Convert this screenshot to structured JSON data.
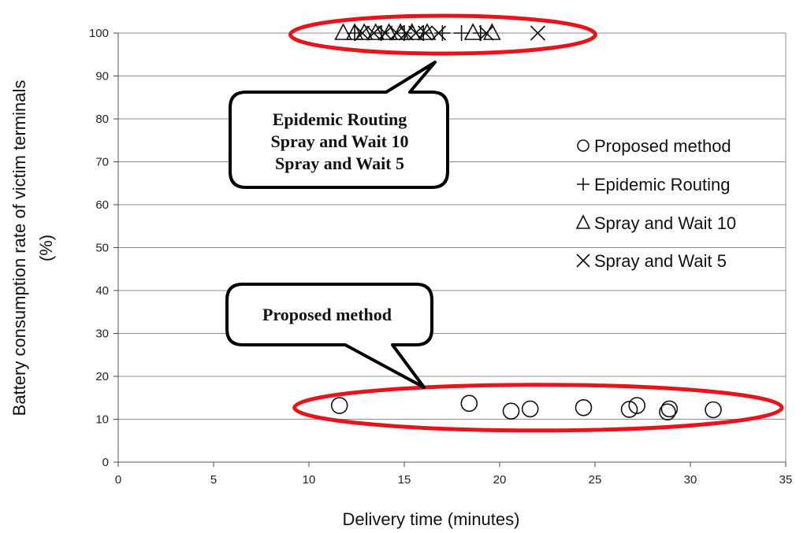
{
  "chart_data": {
    "type": "scatter",
    "xlabel": "Delivery time (minutes)",
    "ylabel": "Battery consumption rate of victim terminals",
    "ylabel_unit": "(%)",
    "xlim": [
      0,
      35
    ],
    "ylim": [
      0,
      100
    ],
    "x_ticks": [
      0,
      5,
      10,
      15,
      20,
      25,
      30,
      35
    ],
    "y_ticks": [
      0,
      10,
      20,
      30,
      40,
      50,
      60,
      70,
      80,
      90,
      100
    ],
    "grid": "horizontal",
    "legend_position": "right",
    "series": [
      {
        "name": "Proposed method",
        "marker": "circle",
        "points": [
          [
            11.6,
            13.2
          ],
          [
            18.4,
            13.7
          ],
          [
            20.6,
            11.9
          ],
          [
            21.6,
            12.4
          ],
          [
            24.4,
            12.7
          ],
          [
            26.8,
            12.3
          ],
          [
            27.2,
            13.2
          ],
          [
            28.8,
            11.7
          ],
          [
            28.9,
            12.4
          ],
          [
            31.2,
            12.2
          ]
        ]
      },
      {
        "name": "Epidemic Routing",
        "marker": "plus",
        "points": [
          [
            12.4,
            100
          ],
          [
            13.8,
            100
          ],
          [
            15.0,
            100
          ],
          [
            16.0,
            100
          ],
          [
            17.0,
            100
          ],
          [
            18.0,
            100
          ],
          [
            19.0,
            100
          ]
        ]
      },
      {
        "name": "Spray and Wait 10",
        "marker": "triangle",
        "points": [
          [
            11.8,
            100
          ],
          [
            12.4,
            100
          ],
          [
            12.9,
            100
          ],
          [
            13.5,
            100
          ],
          [
            14.2,
            100
          ],
          [
            14.8,
            100
          ],
          [
            15.4,
            100
          ],
          [
            16.2,
            100
          ],
          [
            18.6,
            100
          ],
          [
            19.6,
            100
          ]
        ]
      },
      {
        "name": "Spray and Wait 5",
        "marker": "cross",
        "points": [
          [
            12.8,
            100
          ],
          [
            13.4,
            100
          ],
          [
            14.0,
            100
          ],
          [
            14.6,
            100
          ],
          [
            15.1,
            100
          ],
          [
            15.6,
            100
          ],
          [
            16.1,
            100
          ],
          [
            16.8,
            100
          ],
          [
            19.3,
            100
          ],
          [
            22.0,
            100
          ]
        ]
      }
    ],
    "annotations": [
      {
        "lines": [
          "Epidemic Routing",
          "Spray and Wait 10",
          "Spray and Wait 5"
        ],
        "encircles": "points at 100%"
      },
      {
        "lines": [
          "Proposed method"
        ],
        "encircles": "points near 12%"
      }
    ],
    "colors": {
      "ellipse": "#e8141c",
      "marker": "#111111",
      "grid": "#8c8c8c"
    }
  }
}
